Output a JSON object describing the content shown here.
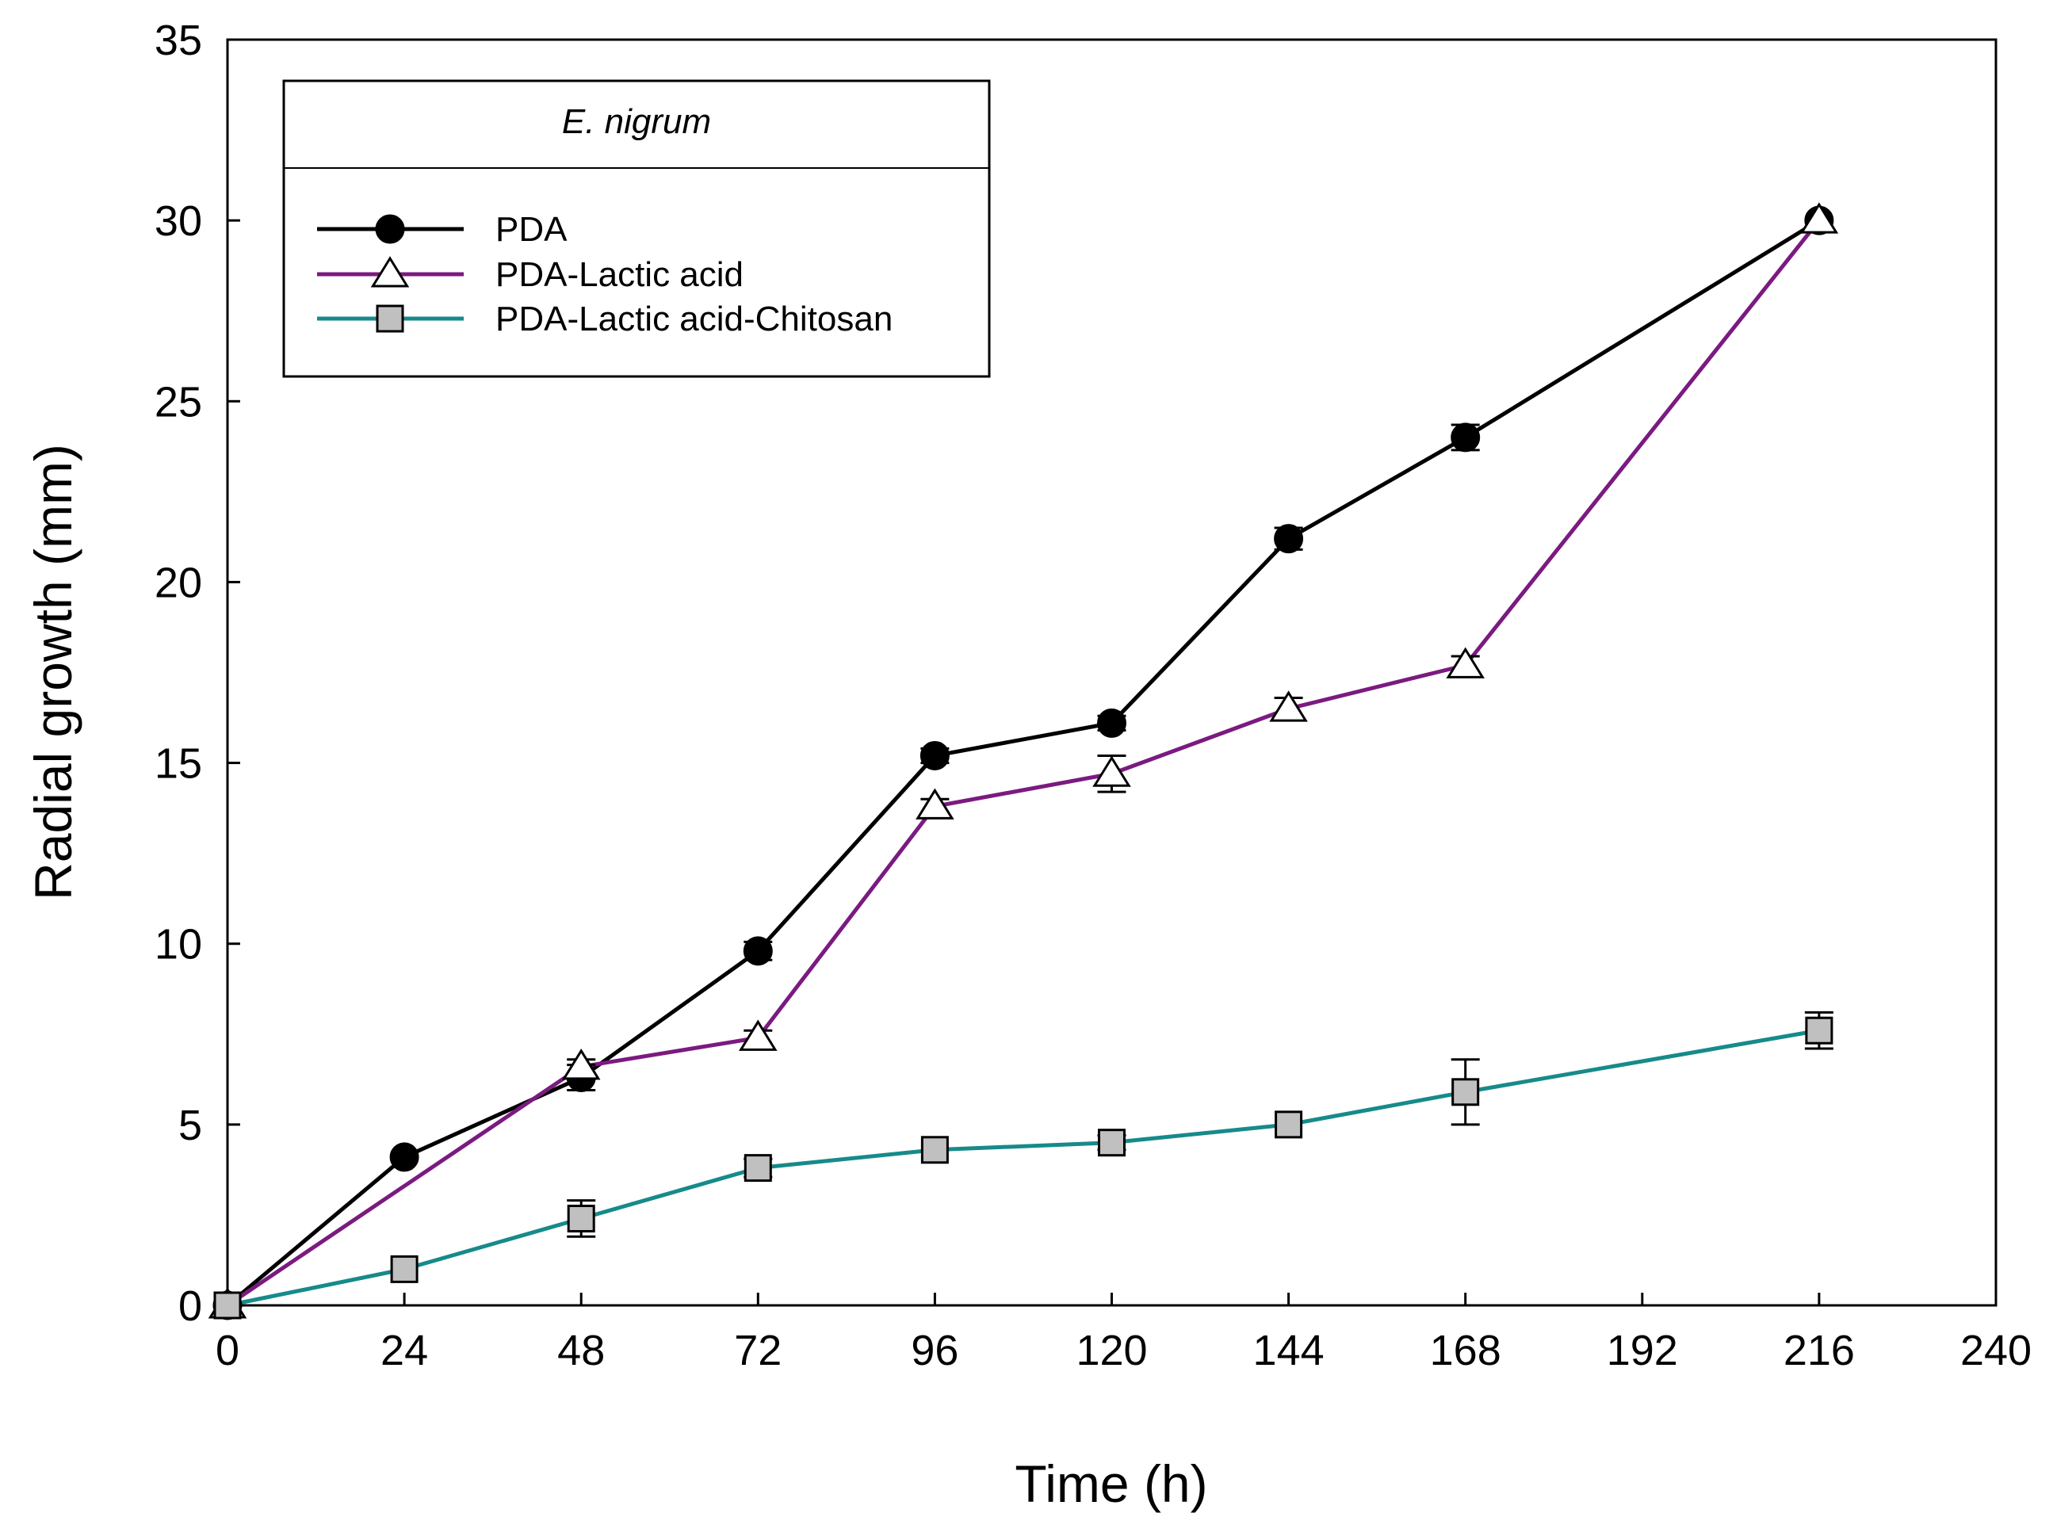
{
  "chart_data": {
    "type": "line",
    "title": "",
    "xlabel": "Time (h)",
    "ylabel": "Radial growth (mm)",
    "xlim": [
      0,
      240
    ],
    "ylim": [
      0,
      35
    ],
    "xticks": [
      0,
      24,
      48,
      72,
      96,
      120,
      144,
      168,
      192,
      216,
      240
    ],
    "yticks": [
      0,
      5,
      10,
      15,
      20,
      25,
      30,
      35
    ],
    "grid": false,
    "legend": {
      "title": "E. nigrum",
      "position": "top-left"
    },
    "series": [
      {
        "name": "PDA",
        "color": "#000000",
        "marker": "circle-filled",
        "marker_fill": "#000000",
        "x": [
          0,
          24,
          48,
          72,
          96,
          120,
          144,
          168,
          216
        ],
        "values": [
          0,
          4.1,
          6.3,
          9.8,
          15.2,
          16.1,
          21.2,
          24.0,
          30.0
        ],
        "errors": [
          0,
          0,
          0.35,
          0.25,
          0.2,
          0.2,
          0.3,
          0.35,
          0
        ]
      },
      {
        "name": "PDA-Lactic acid",
        "color": "#7B1A80",
        "marker": "triangle-open",
        "marker_fill": "#ffffff",
        "x": [
          0,
          48,
          72,
          96,
          120,
          144,
          168,
          216
        ],
        "values": [
          0,
          6.6,
          7.4,
          13.8,
          14.7,
          16.5,
          17.7,
          30.0
        ],
        "errors": [
          0,
          0.2,
          0.2,
          0.2,
          0.5,
          0.3,
          0.25,
          0
        ]
      },
      {
        "name": "PDA-Lactic acid-Chitosan",
        "color": "#178A8A",
        "marker": "square-filled",
        "marker_fill": "#C0C0C0",
        "x": [
          0,
          24,
          48,
          72,
          96,
          120,
          144,
          168,
          216
        ],
        "values": [
          0,
          1.0,
          2.4,
          3.8,
          4.3,
          4.5,
          5.0,
          5.9,
          7.6
        ],
        "errors": [
          0,
          0,
          0.5,
          0.25,
          0,
          0.2,
          0,
          0.9,
          0.5
        ]
      }
    ]
  }
}
